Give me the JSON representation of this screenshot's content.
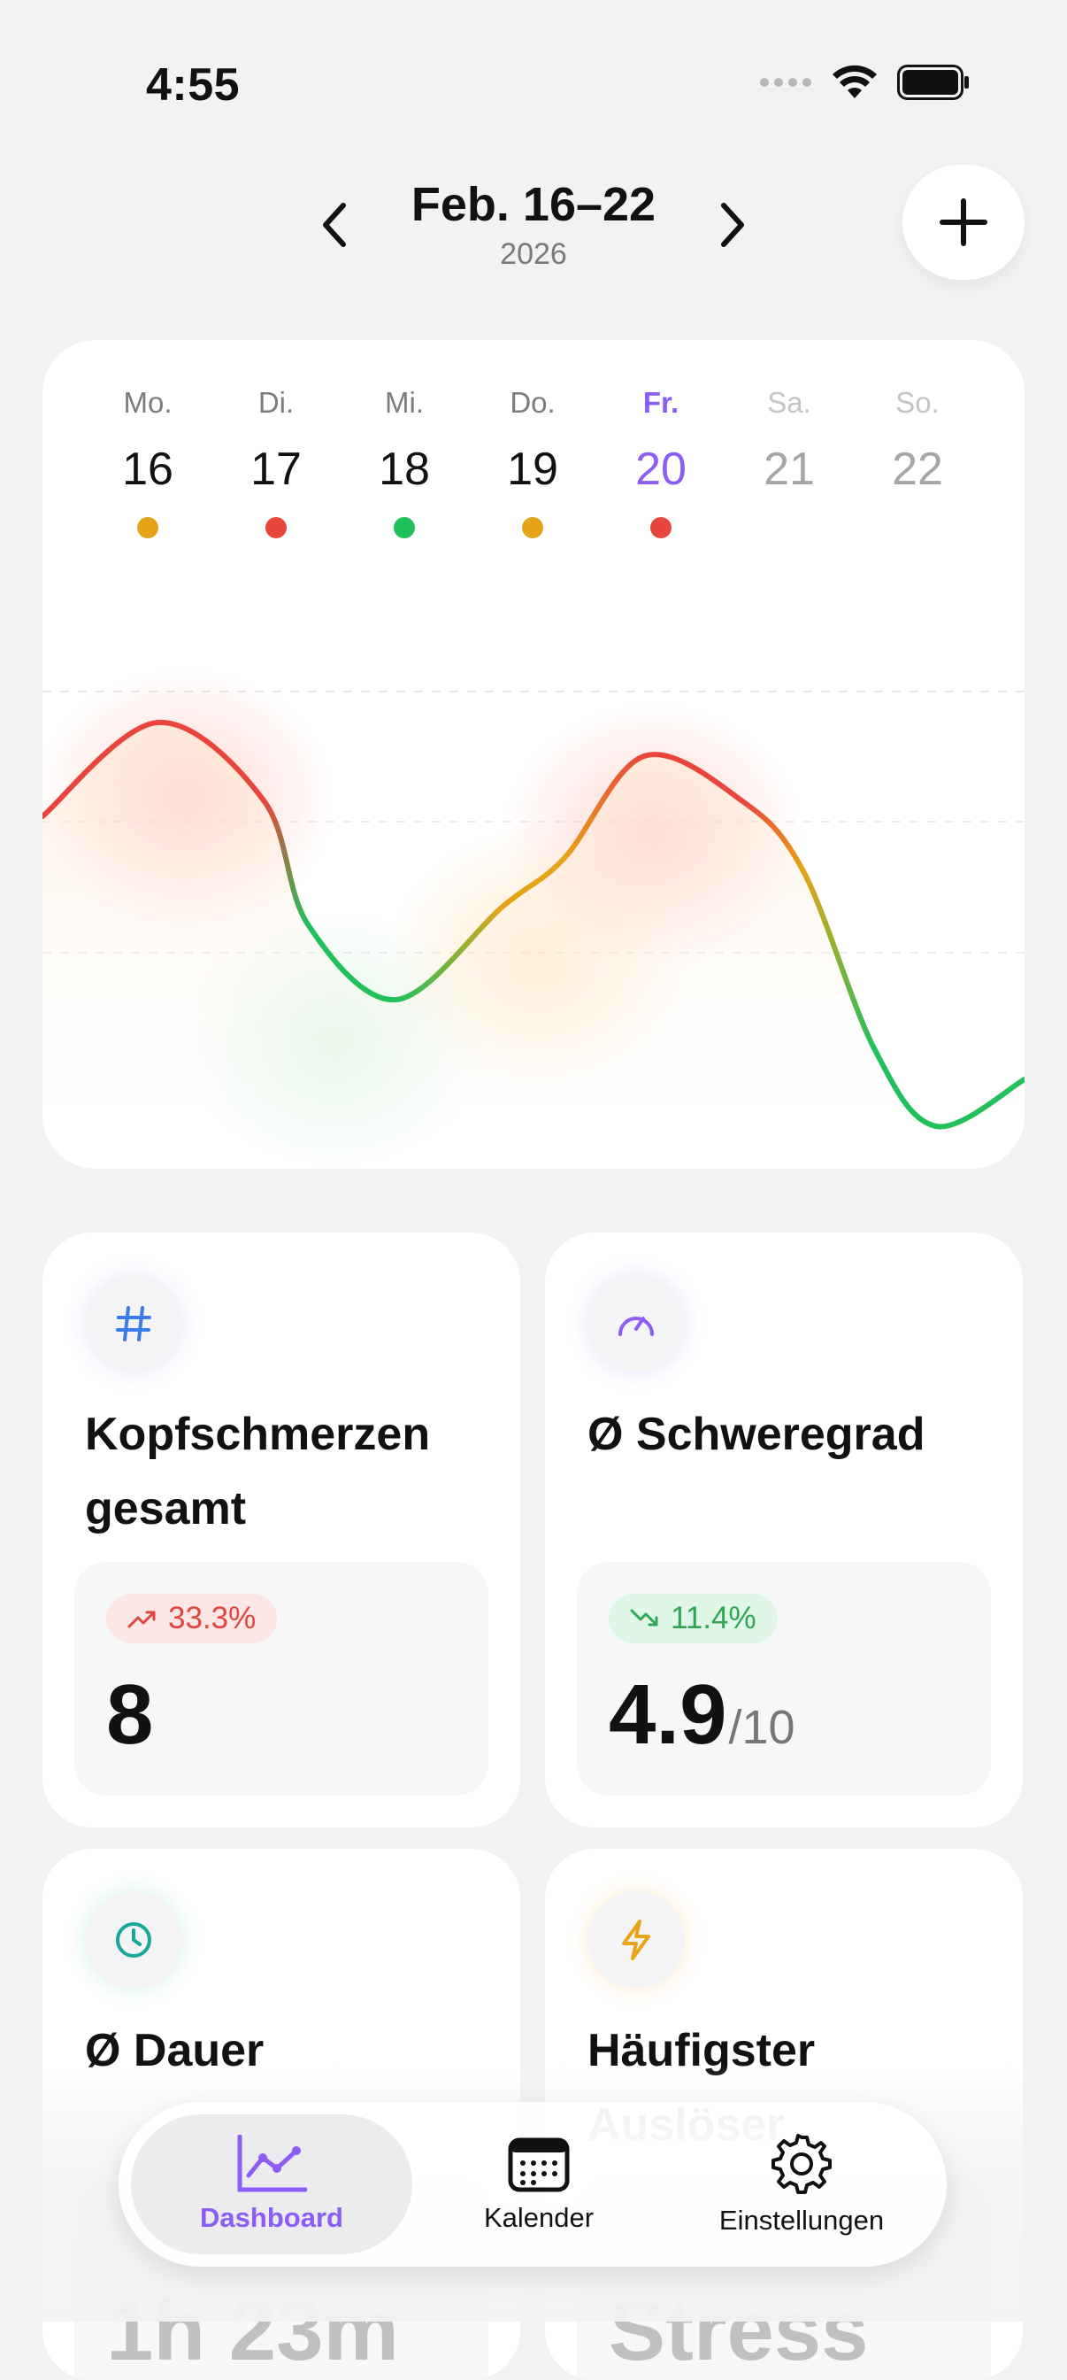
{
  "status": {
    "time": "4:55"
  },
  "header": {
    "title": "Feb. 16–22",
    "year": "2026"
  },
  "week": [
    {
      "name": "Mo.",
      "num": "16",
      "dot": "#e5a417",
      "state": "past"
    },
    {
      "name": "Di.",
      "num": "17",
      "dot": "#e8463d",
      "state": "past"
    },
    {
      "name": "Mi.",
      "num": "18",
      "dot": "#22c05a",
      "state": "past"
    },
    {
      "name": "Do.",
      "num": "19",
      "dot": "#e5a417",
      "state": "past"
    },
    {
      "name": "Fr.",
      "num": "20",
      "dot": "#e8463d",
      "state": "today"
    },
    {
      "name": "Sa.",
      "num": "21",
      "dot": null,
      "state": "future"
    },
    {
      "name": "So.",
      "num": "22",
      "dot": null,
      "state": "future"
    }
  ],
  "stats": [
    {
      "title": "Kopfschmerzen gesamt",
      "icon": "hash-icon",
      "badge": "33.3%",
      "trend": "up",
      "value": "8",
      "unit": ""
    },
    {
      "title": "Ø Schweregrad",
      "icon": "gauge-icon",
      "badge": "11.4%",
      "trend": "down",
      "value": "4.9",
      "unit": "/10"
    },
    {
      "title": "Ø Dauer",
      "icon": "clock-icon",
      "value": "1h 23m"
    },
    {
      "title": "Häufigster Auslöser",
      "icon": "bolt-icon",
      "value": "Stress"
    }
  ],
  "tabs": [
    {
      "label": "Dashboard",
      "icon": "chart-line-icon",
      "active": true
    },
    {
      "label": "Kalender",
      "icon": "calendar-icon",
      "active": false
    },
    {
      "label": "Einstellungen",
      "icon": "gear-icon",
      "active": false
    }
  ],
  "colors": {
    "accent": "#8b5cf6",
    "low": "#22c05a",
    "mid": "#e5a417",
    "high": "#e8463d"
  }
}
